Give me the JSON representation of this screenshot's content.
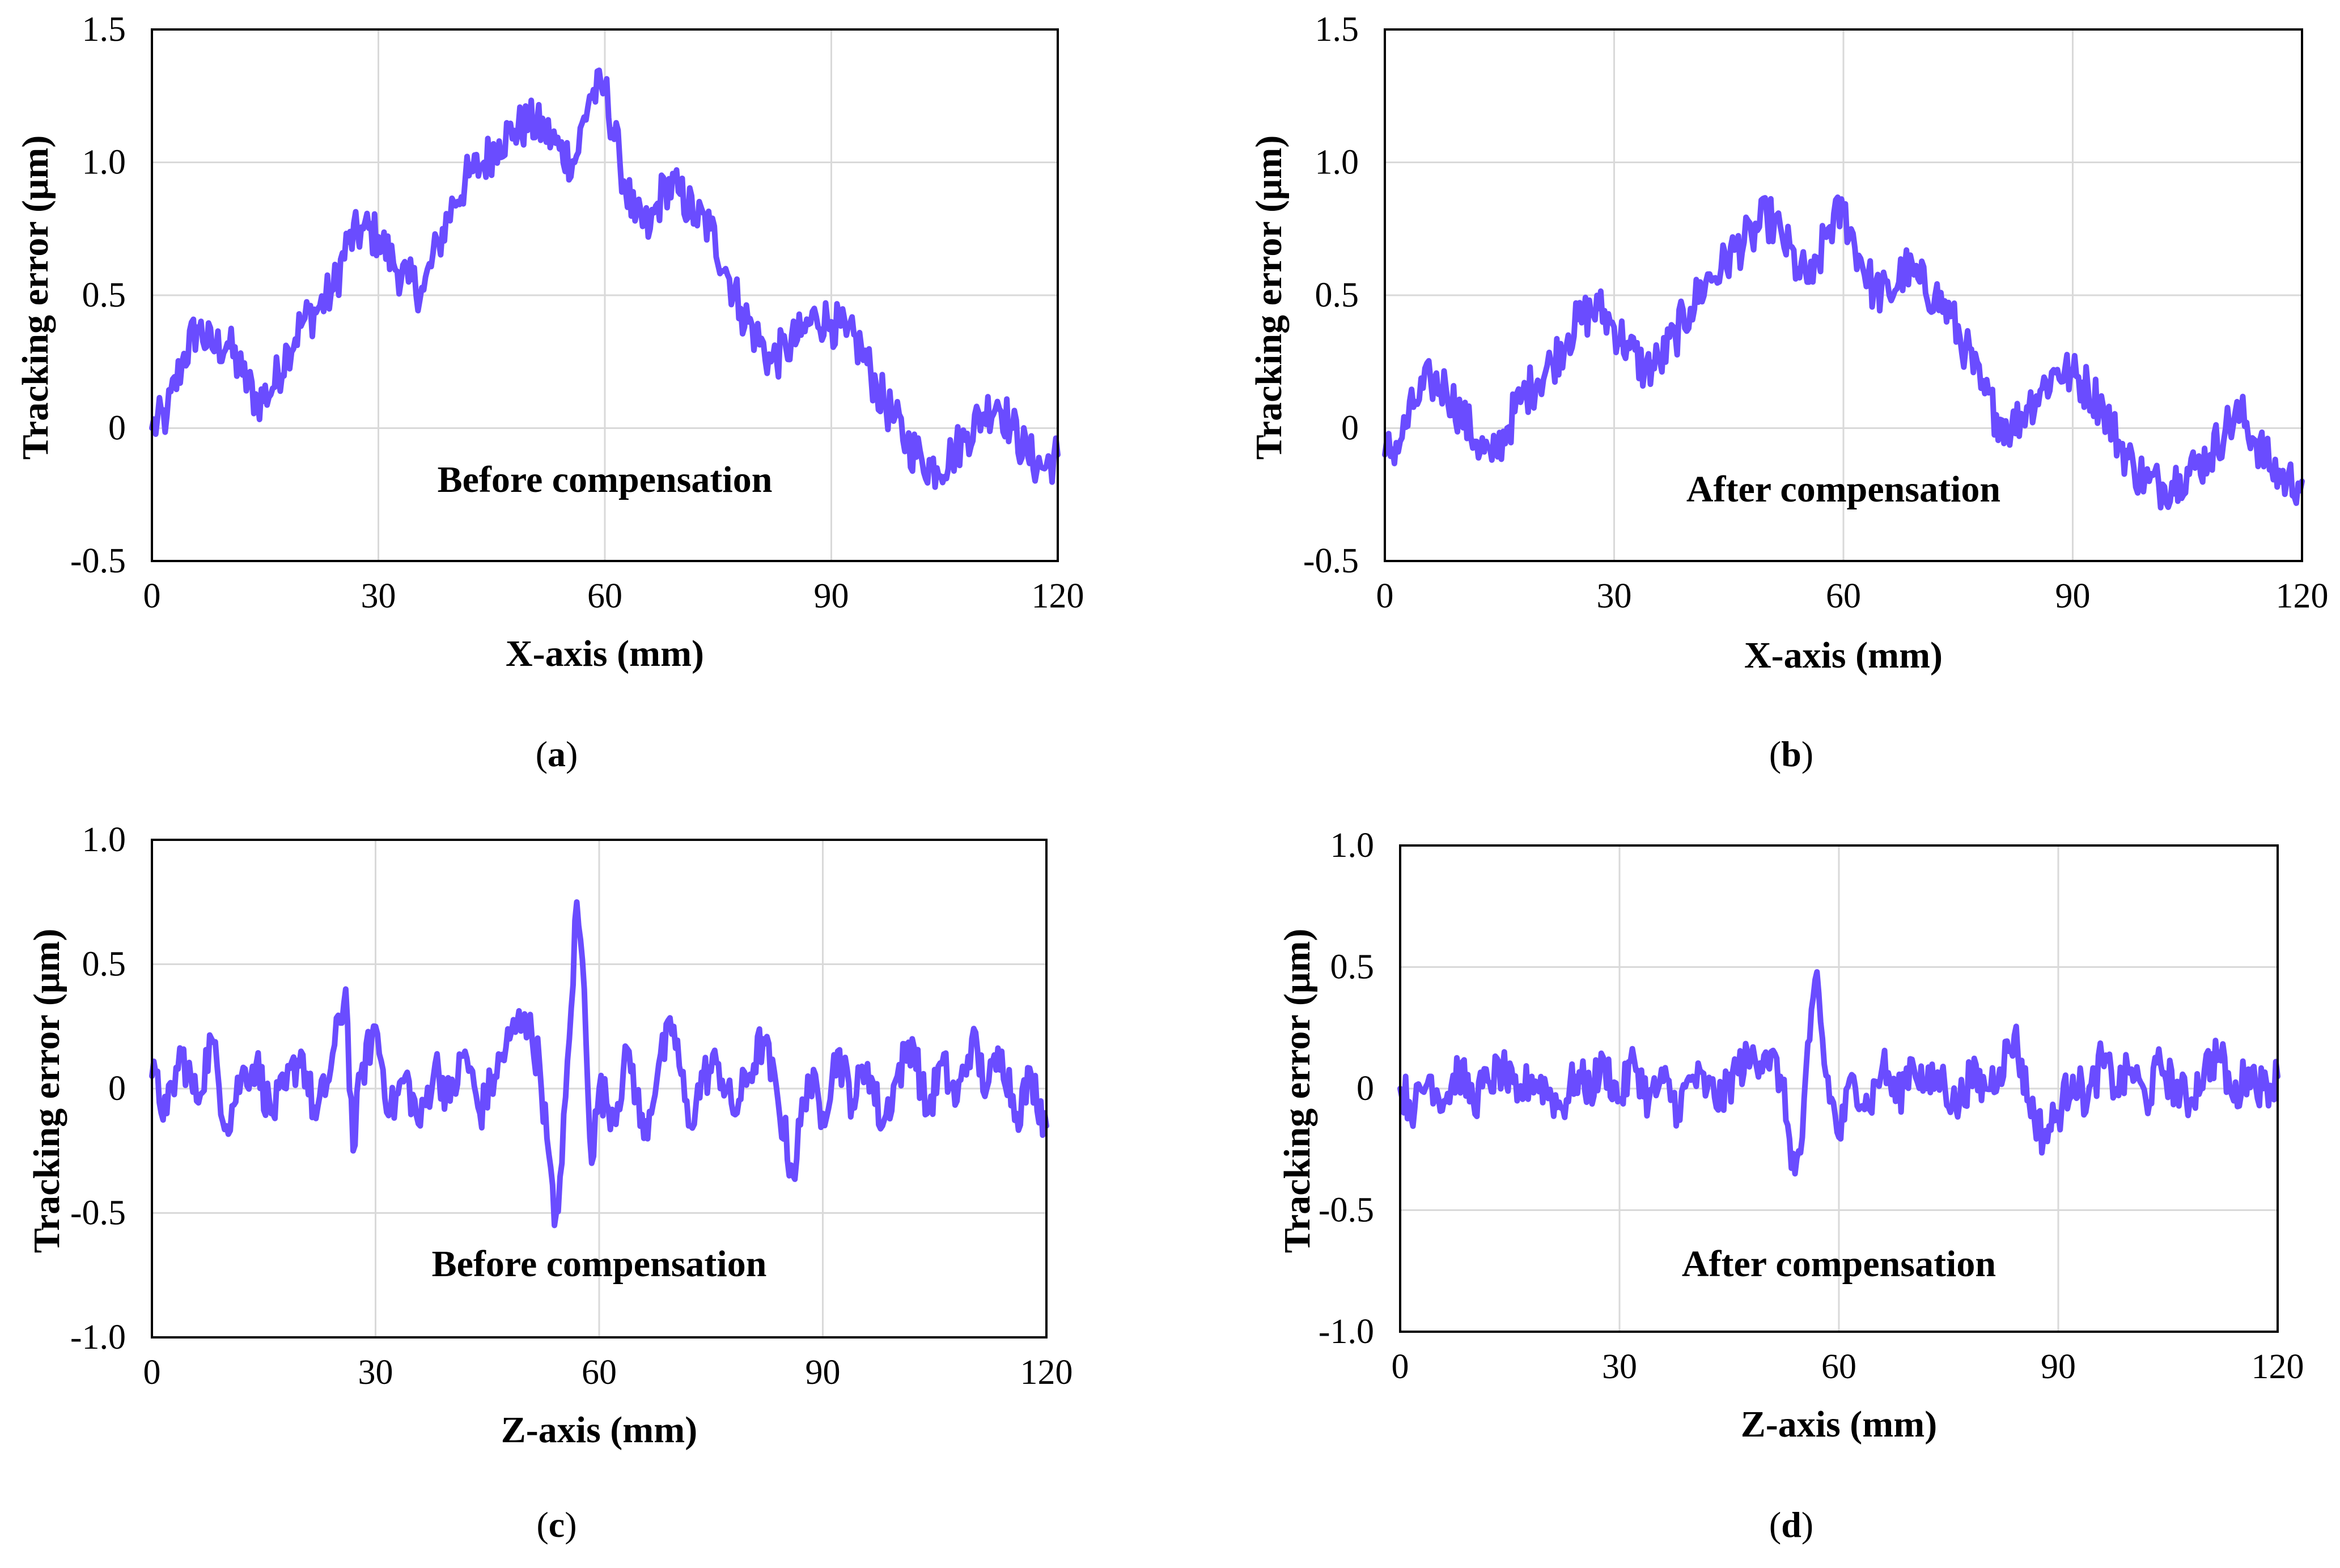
{
  "chart_data": [
    {
      "id": "a",
      "type": "line",
      "caption": "a",
      "annotation": "Before compensation",
      "xlabel": "X-axis (mm)",
      "ylabel": "Tracking error (μm)",
      "xlim": [
        0,
        120
      ],
      "ylim": [
        -0.5,
        1.5
      ],
      "xticks": [
        0,
        30,
        60,
        90,
        120
      ],
      "yticks": [
        -0.5,
        0,
        0.5,
        1.0,
        1.5
      ],
      "ytick_labels": [
        "-0.5",
        "0",
        "0.5",
        "1.0",
        "1.5"
      ],
      "grid": true,
      "line_color": "#6a4cff",
      "series": [
        {
          "name": "Tracking error",
          "x": [
            0,
            2,
            4,
            6,
            8,
            10,
            12,
            14,
            16,
            18,
            20,
            22,
            24,
            26,
            28,
            30,
            32,
            34,
            36,
            38,
            40,
            42,
            44,
            46,
            48,
            50,
            52,
            54,
            56,
            58,
            60,
            62,
            64,
            66,
            68,
            70,
            72,
            74,
            76,
            78,
            80,
            82,
            84,
            86,
            88,
            90,
            92,
            94,
            96,
            98,
            100,
            102,
            104,
            106,
            108,
            110,
            112,
            114,
            116,
            118,
            120
          ],
          "y": [
            0.0,
            0.05,
            0.25,
            0.38,
            0.3,
            0.32,
            0.2,
            0.1,
            0.15,
            0.3,
            0.4,
            0.45,
            0.52,
            0.7,
            0.75,
            0.72,
            0.62,
            0.55,
            0.52,
            0.7,
            0.85,
            0.95,
            1.0,
            1.08,
            1.12,
            1.15,
            1.12,
            1.05,
            1.0,
            1.25,
            1.28,
            1.0,
            0.78,
            0.75,
            0.92,
            0.88,
            0.8,
            0.75,
            0.6,
            0.45,
            0.35,
            0.25,
            0.3,
            0.35,
            0.42,
            0.4,
            0.35,
            0.3,
            0.15,
            0.05,
            -0.05,
            -0.12,
            -0.15,
            -0.1,
            -0.02,
            0.05,
            0.1,
            0.0,
            -0.1,
            -0.15,
            -0.1
          ]
        }
      ]
    },
    {
      "id": "b",
      "type": "line",
      "caption": "b",
      "annotation": "After compensation",
      "xlabel": "X-axis (mm)",
      "ylabel": "Tracking error (μm)",
      "xlim": [
        0,
        120
      ],
      "ylim": [
        -0.5,
        1.5
      ],
      "xticks": [
        0,
        30,
        60,
        90,
        120
      ],
      "yticks": [
        -0.5,
        0,
        0.5,
        1.0,
        1.5
      ],
      "ytick_labels": [
        "-0.5",
        "0",
        "0.5",
        "1.0",
        "1.5"
      ],
      "grid": true,
      "line_color": "#6a4cff",
      "series": [
        {
          "name": "Tracking error",
          "x": [
            0,
            2,
            4,
            6,
            8,
            10,
            12,
            14,
            16,
            18,
            20,
            22,
            24,
            26,
            28,
            30,
            32,
            34,
            36,
            38,
            40,
            42,
            44,
            46,
            48,
            50,
            52,
            54,
            56,
            58,
            60,
            62,
            64,
            66,
            68,
            70,
            72,
            74,
            76,
            78,
            80,
            82,
            84,
            86,
            88,
            90,
            92,
            94,
            96,
            98,
            100,
            102,
            104,
            106,
            108,
            110,
            112,
            114,
            116,
            118,
            120
          ],
          "y": [
            -0.1,
            -0.05,
            0.1,
            0.18,
            0.15,
            0.05,
            -0.05,
            -0.12,
            0.0,
            0.12,
            0.18,
            0.25,
            0.35,
            0.42,
            0.45,
            0.38,
            0.3,
            0.22,
            0.25,
            0.35,
            0.45,
            0.55,
            0.6,
            0.68,
            0.72,
            0.8,
            0.72,
            0.6,
            0.55,
            0.75,
            0.82,
            0.65,
            0.52,
            0.5,
            0.6,
            0.55,
            0.5,
            0.42,
            0.3,
            0.15,
            0.05,
            0.0,
            0.08,
            0.15,
            0.22,
            0.2,
            0.15,
            0.08,
            -0.05,
            -0.15,
            -0.2,
            -0.22,
            -0.18,
            -0.15,
            -0.1,
            0.0,
            0.05,
            -0.05,
            -0.15,
            -0.2,
            -0.2
          ]
        }
      ]
    },
    {
      "id": "c",
      "type": "line",
      "caption": "c",
      "annotation": "Before compensation",
      "xlabel": "Z-axis (mm)",
      "ylabel": "Tracking error (μm)",
      "xlim": [
        0,
        120
      ],
      "ylim": [
        -1.0,
        1.0
      ],
      "xticks": [
        0,
        30,
        60,
        90,
        120
      ],
      "yticks": [
        -1.0,
        -0.5,
        0,
        0.5,
        1.0
      ],
      "ytick_labels": [
        "-1.0",
        "-0.5",
        "0",
        "0.5",
        "1.0"
      ],
      "grid": true,
      "line_color": "#6a4cff",
      "series": [
        {
          "name": "Tracking error",
          "x": [
            0,
            2,
            4,
            6,
            8,
            10,
            12,
            14,
            16,
            18,
            20,
            22,
            24,
            26,
            27,
            28,
            30,
            32,
            34,
            36,
            38,
            40,
            42,
            44,
            46,
            48,
            50,
            52,
            53,
            54,
            55,
            56,
            57,
            58,
            59,
            60,
            62,
            64,
            66,
            68,
            70,
            72,
            74,
            76,
            78,
            80,
            82,
            84,
            86,
            88,
            90,
            92,
            94,
            96,
            98,
            100,
            102,
            104,
            106,
            108,
            110,
            112,
            114,
            116,
            118,
            120
          ],
          "y": [
            0.05,
            -0.1,
            0.15,
            -0.05,
            0.2,
            -0.15,
            0.05,
            0.1,
            -0.1,
            0.0,
            0.15,
            -0.12,
            0.08,
            0.4,
            -0.25,
            0.05,
            0.25,
            -0.1,
            0.05,
            -0.15,
            0.1,
            -0.05,
            0.15,
            -0.1,
            0.05,
            0.2,
            0.3,
            0.1,
            -0.2,
            -0.55,
            -0.3,
            0.2,
            0.75,
            0.4,
            -0.3,
            0.0,
            -0.1,
            0.15,
            -0.2,
            0.1,
            0.25,
            -0.15,
            0.05,
            0.1,
            -0.1,
            0.05,
            0.2,
            -0.05,
            -0.35,
            0.05,
            -0.1,
            0.15,
            -0.05,
            0.1,
            -0.15,
            0.05,
            0.2,
            -0.1,
            0.1,
            -0.05,
            0.2,
            0.0,
            0.15,
            -0.1,
            0.05,
            -0.15
          ]
        }
      ]
    },
    {
      "id": "d",
      "type": "line",
      "caption": "d",
      "annotation": "After compensation",
      "xlabel": "Z-axis (mm)",
      "ylabel": "Tracking error (μm)",
      "xlim": [
        0,
        120
      ],
      "ylim": [
        -1.0,
        1.0
      ],
      "xticks": [
        0,
        30,
        60,
        90,
        120
      ],
      "yticks": [
        -1.0,
        -0.5,
        0,
        0.5,
        1.0
      ],
      "ytick_labels": [
        "-1.0",
        "-0.5",
        "0",
        "0.5",
        "1.0"
      ],
      "grid": true,
      "line_color": "#6a4cff",
      "series": [
        {
          "name": "Tracking error",
          "x": [
            0,
            2,
            4,
            6,
            8,
            10,
            12,
            14,
            16,
            18,
            20,
            22,
            24,
            26,
            28,
            30,
            32,
            34,
            36,
            38,
            40,
            42,
            44,
            46,
            48,
            50,
            52,
            53,
            54,
            55,
            56,
            57,
            58,
            60,
            62,
            64,
            66,
            68,
            70,
            72,
            74,
            76,
            78,
            80,
            82,
            84,
            86,
            88,
            90,
            92,
            94,
            96,
            98,
            100,
            102,
            104,
            106,
            108,
            110,
            112,
            114,
            116,
            118,
            120
          ],
          "y": [
            0.0,
            -0.08,
            0.05,
            -0.05,
            0.08,
            -0.05,
            0.03,
            0.08,
            -0.05,
            0.05,
            0.0,
            -0.08,
            0.05,
            0.0,
            0.1,
            -0.05,
            0.12,
            -0.05,
            0.03,
            -0.08,
            0.05,
            0.0,
            -0.05,
            0.08,
            0.12,
            0.15,
            0.05,
            -0.15,
            -0.35,
            -0.2,
            0.2,
            0.48,
            0.1,
            -0.2,
            0.05,
            -0.08,
            0.1,
            -0.05,
            0.12,
            0.0,
            0.05,
            -0.08,
            0.05,
            0.0,
            0.08,
            0.22,
            -0.05,
            -0.2,
            -0.1,
            0.05,
            -0.05,
            0.12,
            0.0,
            0.08,
            -0.05,
            0.1,
            0.0,
            -0.05,
            0.08,
            0.15,
            -0.05,
            0.08,
            0.0,
            0.05
          ]
        }
      ]
    }
  ]
}
